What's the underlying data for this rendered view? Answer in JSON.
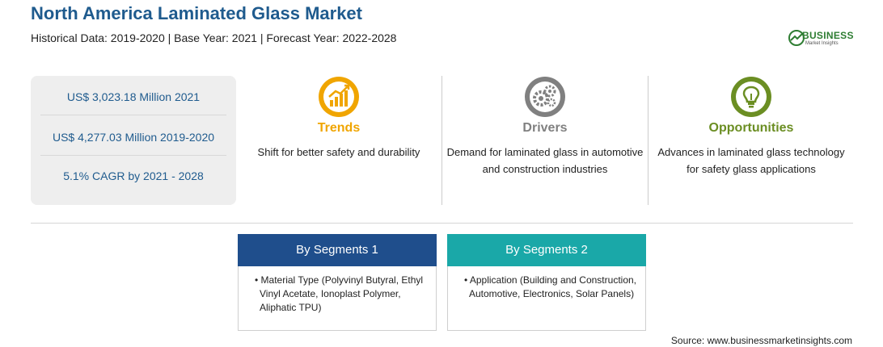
{
  "header": {
    "title": "North America Laminated Glass Market",
    "subtitle": "Historical Data: 2019-2020 | Base Year: 2021 | Forecast Year: 2022-2028"
  },
  "logo": {
    "word": "BUSINESS",
    "tagline": "Market Insights",
    "icon": "globe-icon"
  },
  "stats": [
    "US$ 3,023.18 Million 2021",
    "US$ 4,277.03 Million 2019-2020",
    "5.1% CAGR by 2021 - 2028"
  ],
  "columns": [
    {
      "icon": "trend-chart-icon",
      "title": "Trends",
      "color": "#f0a500",
      "text": "Shift for better safety and durability"
    },
    {
      "icon": "gears-icon",
      "title": "Drivers",
      "color": "#808080",
      "text": "Demand for laminated glass in automotive and construction industries"
    },
    {
      "icon": "lightbulb-icon",
      "title": "Opportunities",
      "color": "#6b8e23",
      "text": "Advances in laminated glass technology for safety glass applications"
    }
  ],
  "segments": [
    {
      "title": "By Segments 1",
      "color": "#1f4e8c",
      "bullet": "•",
      "text": "Material Type (Polyvinyl Butyral, Ethyl Vinyl Acetate, Ionoplast Polymer, Aliphatic TPU)"
    },
    {
      "title": "By Segments 2",
      "color": "#1aa8a8",
      "bullet": "•",
      "text": "Application (Building and Construction, Automotive, Electronics, Solar Panels)"
    }
  ],
  "source": "Source: www.businessmarketinsights.com"
}
